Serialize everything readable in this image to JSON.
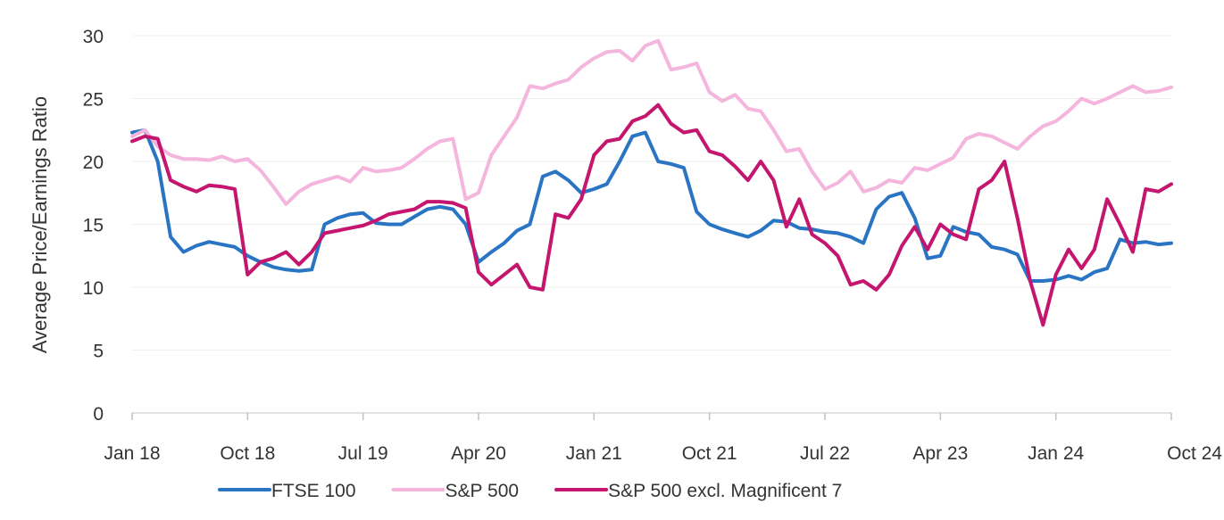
{
  "chart_data": {
    "type": "line",
    "title": "",
    "xlabel": "",
    "ylabel": "Average Price/Earnings Ratio",
    "ylim": [
      0,
      30
    ],
    "yticks": [
      0,
      5,
      10,
      15,
      20,
      25,
      30
    ],
    "xlim": [
      "2018-01",
      "2024-10"
    ],
    "xticks": [
      {
        "date": "2018-01",
        "label": "Jan 18"
      },
      {
        "date": "2018-10",
        "label": "Oct 18"
      },
      {
        "date": "2019-07",
        "label": "Jul 19"
      },
      {
        "date": "2020-04",
        "label": "Apr 20"
      },
      {
        "date": "2021-01",
        "label": "Jan 21"
      },
      {
        "date": "2021-10",
        "label": "Oct 21"
      },
      {
        "date": "2022-07",
        "label": "Jul 22"
      },
      {
        "date": "2023-04",
        "label": "Apr 23"
      },
      {
        "date": "2024-01",
        "label": "Jan 24"
      },
      {
        "date": "2024-10",
        "label": "Oct 24"
      }
    ],
    "grid": true,
    "legend_position": "bottom",
    "series": [
      {
        "name": "FTSE 100",
        "color": "#2a74c4",
        "points": [
          [
            "2018-01",
            22.3
          ],
          [
            "2018-02",
            22.5
          ],
          [
            "2018-03",
            20
          ],
          [
            "2018-04",
            14
          ],
          [
            "2018-05",
            12.8
          ],
          [
            "2018-06",
            13.3
          ],
          [
            "2018-07",
            13.6
          ],
          [
            "2018-08",
            13.4
          ],
          [
            "2018-09",
            13.2
          ],
          [
            "2018-10",
            12.5
          ],
          [
            "2018-11",
            12
          ],
          [
            "2018-12",
            11.6
          ],
          [
            "2019-01",
            11.4
          ],
          [
            "2019-02",
            11.3
          ],
          [
            "2019-03",
            11.4
          ],
          [
            "2019-04",
            15
          ],
          [
            "2019-05",
            15.5
          ],
          [
            "2019-06",
            15.8
          ],
          [
            "2019-07",
            15.9
          ],
          [
            "2019-08",
            15.1
          ],
          [
            "2019-09",
            15
          ],
          [
            "2019-10",
            15
          ],
          [
            "2019-11",
            15.6
          ],
          [
            "2019-12",
            16.2
          ],
          [
            "2020-01",
            16.4
          ],
          [
            "2020-02",
            16.2
          ],
          [
            "2020-03",
            15
          ],
          [
            "2020-04",
            12
          ],
          [
            "2020-05",
            12.8
          ],
          [
            "2020-06",
            13.5
          ],
          [
            "2020-07",
            14.5
          ],
          [
            "2020-08",
            15
          ],
          [
            "2020-09",
            18.8
          ],
          [
            "2020-10",
            19.2
          ],
          [
            "2020-11",
            18.5
          ],
          [
            "2020-12",
            17.5
          ],
          [
            "2021-01",
            17.8
          ],
          [
            "2021-02",
            18.2
          ],
          [
            "2021-03",
            20
          ],
          [
            "2021-04",
            22
          ],
          [
            "2021-05",
            22.3
          ],
          [
            "2021-06",
            20
          ],
          [
            "2021-07",
            19.8
          ],
          [
            "2021-08",
            19.5
          ],
          [
            "2021-09",
            16
          ],
          [
            "2021-10",
            15
          ],
          [
            "2021-11",
            14.6
          ],
          [
            "2021-12",
            14.3
          ],
          [
            "2022-01",
            14
          ],
          [
            "2022-02",
            14.5
          ],
          [
            "2022-03",
            15.3
          ],
          [
            "2022-04",
            15.2
          ],
          [
            "2022-05",
            14.7
          ],
          [
            "2022-06",
            14.6
          ],
          [
            "2022-07",
            14.4
          ],
          [
            "2022-08",
            14.3
          ],
          [
            "2022-09",
            14
          ],
          [
            "2022-10",
            13.5
          ],
          [
            "2022-11",
            16.2
          ],
          [
            "2022-12",
            17.2
          ],
          [
            "2023-01",
            17.5
          ],
          [
            "2023-02",
            15.5
          ],
          [
            "2023-03",
            12.3
          ],
          [
            "2023-04",
            12.5
          ],
          [
            "2023-05",
            14.8
          ],
          [
            "2023-06",
            14.4
          ],
          [
            "2023-07",
            14.2
          ],
          [
            "2023-08",
            13.2
          ],
          [
            "2023-09",
            13
          ],
          [
            "2023-10",
            12.6
          ],
          [
            "2023-11",
            10.5
          ],
          [
            "2023-12",
            10.5
          ],
          [
            "2024-01",
            10.6
          ],
          [
            "2024-02",
            10.9
          ],
          [
            "2024-03",
            10.6
          ],
          [
            "2024-04",
            11.2
          ],
          [
            "2024-05",
            11.5
          ],
          [
            "2024-06",
            13.8
          ],
          [
            "2024-07",
            13.5
          ],
          [
            "2024-08",
            13.6
          ],
          [
            "2024-09",
            13.4
          ],
          [
            "2024-10",
            13.5
          ]
        ]
      },
      {
        "name": "S&P 500",
        "color": "#f4b6dd",
        "points": [
          [
            "2018-01",
            22
          ],
          [
            "2018-02",
            22.5
          ],
          [
            "2018-03",
            21.2
          ],
          [
            "2018-04",
            20.5
          ],
          [
            "2018-05",
            20.2
          ],
          [
            "2018-06",
            20.2
          ],
          [
            "2018-07",
            20.1
          ],
          [
            "2018-08",
            20.4
          ],
          [
            "2018-09",
            20
          ],
          [
            "2018-10",
            20.2
          ],
          [
            "2018-11",
            19.3
          ],
          [
            "2018-12",
            18
          ],
          [
            "2019-01",
            16.6
          ],
          [
            "2019-02",
            17.6
          ],
          [
            "2019-03",
            18.2
          ],
          [
            "2019-04",
            18.5
          ],
          [
            "2019-05",
            18.8
          ],
          [
            "2019-06",
            18.4
          ],
          [
            "2019-07",
            19.5
          ],
          [
            "2019-08",
            19.2
          ],
          [
            "2019-09",
            19.3
          ],
          [
            "2019-10",
            19.5
          ],
          [
            "2019-11",
            20.2
          ],
          [
            "2019-12",
            21
          ],
          [
            "2020-01",
            21.6
          ],
          [
            "2020-02",
            21.8
          ],
          [
            "2020-03",
            17
          ],
          [
            "2020-04",
            17.5
          ],
          [
            "2020-05",
            20.5
          ],
          [
            "2020-06",
            22
          ],
          [
            "2020-07",
            23.5
          ],
          [
            "2020-08",
            26
          ],
          [
            "2020-09",
            25.8
          ],
          [
            "2020-10",
            26.2
          ],
          [
            "2020-11",
            26.5
          ],
          [
            "2020-12",
            27.5
          ],
          [
            "2021-01",
            28.2
          ],
          [
            "2021-02",
            28.7
          ],
          [
            "2021-03",
            28.8
          ],
          [
            "2021-04",
            28
          ],
          [
            "2021-05",
            29.2
          ],
          [
            "2021-06",
            29.6
          ],
          [
            "2021-07",
            27.3
          ],
          [
            "2021-08",
            27.5
          ],
          [
            "2021-09",
            27.8
          ],
          [
            "2021-10",
            25.5
          ],
          [
            "2021-11",
            24.8
          ],
          [
            "2021-12",
            25.3
          ],
          [
            "2022-01",
            24.2
          ],
          [
            "2022-02",
            24
          ],
          [
            "2022-03",
            22.5
          ],
          [
            "2022-04",
            20.8
          ],
          [
            "2022-05",
            21
          ],
          [
            "2022-06",
            19.2
          ],
          [
            "2022-07",
            17.8
          ],
          [
            "2022-08",
            18.3
          ],
          [
            "2022-09",
            19.2
          ],
          [
            "2022-10",
            17.6
          ],
          [
            "2022-11",
            17.9
          ],
          [
            "2022-12",
            18.5
          ],
          [
            "2023-01",
            18.3
          ],
          [
            "2023-02",
            19.5
          ],
          [
            "2023-03",
            19.3
          ],
          [
            "2023-04",
            19.8
          ],
          [
            "2023-05",
            20.3
          ],
          [
            "2023-06",
            21.8
          ],
          [
            "2023-07",
            22.2
          ],
          [
            "2023-08",
            22
          ],
          [
            "2023-09",
            21.5
          ],
          [
            "2023-10",
            21
          ],
          [
            "2023-11",
            22
          ],
          [
            "2023-12",
            22.8
          ],
          [
            "2024-01",
            23.2
          ],
          [
            "2024-02",
            24
          ],
          [
            "2024-03",
            25
          ],
          [
            "2024-04",
            24.6
          ],
          [
            "2024-05",
            25
          ],
          [
            "2024-06",
            25.5
          ],
          [
            "2024-07",
            26
          ],
          [
            "2024-08",
            25.5
          ],
          [
            "2024-09",
            25.6
          ],
          [
            "2024-10",
            25.9
          ]
        ]
      },
      {
        "name": "S&P 500 excl. Magnificent 7",
        "color": "#c4166f",
        "points": [
          [
            "2018-01",
            21.6
          ],
          [
            "2018-02",
            22
          ],
          [
            "2018-03",
            21.8
          ],
          [
            "2018-04",
            18.5
          ],
          [
            "2018-05",
            18
          ],
          [
            "2018-06",
            17.6
          ],
          [
            "2018-07",
            18.1
          ],
          [
            "2018-08",
            18
          ],
          [
            "2018-09",
            17.8
          ],
          [
            "2018-10",
            11
          ],
          [
            "2018-11",
            12
          ],
          [
            "2018-12",
            12.3
          ],
          [
            "2019-01",
            12.8
          ],
          [
            "2019-02",
            11.8
          ],
          [
            "2019-03",
            12.8
          ],
          [
            "2019-04",
            14.3
          ],
          [
            "2019-05",
            14.5
          ],
          [
            "2019-06",
            14.7
          ],
          [
            "2019-07",
            14.9
          ],
          [
            "2019-08",
            15.3
          ],
          [
            "2019-09",
            15.8
          ],
          [
            "2019-10",
            16
          ],
          [
            "2019-11",
            16.2
          ],
          [
            "2019-12",
            16.8
          ],
          [
            "2020-01",
            16.8
          ],
          [
            "2020-02",
            16.7
          ],
          [
            "2020-03",
            16.3
          ],
          [
            "2020-04",
            11.2
          ],
          [
            "2020-05",
            10.2
          ],
          [
            "2020-06",
            11
          ],
          [
            "2020-07",
            11.8
          ],
          [
            "2020-08",
            10
          ],
          [
            "2020-09",
            9.8
          ],
          [
            "2020-10",
            15.8
          ],
          [
            "2020-11",
            15.5
          ],
          [
            "2020-12",
            17
          ],
          [
            "2021-01",
            20.5
          ],
          [
            "2021-02",
            21.6
          ],
          [
            "2021-03",
            21.8
          ],
          [
            "2021-04",
            23.2
          ],
          [
            "2021-05",
            23.6
          ],
          [
            "2021-06",
            24.5
          ],
          [
            "2021-07",
            23
          ],
          [
            "2021-08",
            22.3
          ],
          [
            "2021-09",
            22.5
          ],
          [
            "2021-10",
            20.8
          ],
          [
            "2021-11",
            20.5
          ],
          [
            "2021-12",
            19.6
          ],
          [
            "2022-01",
            18.5
          ],
          [
            "2022-02",
            20
          ],
          [
            "2022-03",
            18.5
          ],
          [
            "2022-04",
            14.8
          ],
          [
            "2022-05",
            17
          ],
          [
            "2022-06",
            14.2
          ],
          [
            "2022-07",
            13.5
          ],
          [
            "2022-08",
            12.5
          ],
          [
            "2022-09",
            10.2
          ],
          [
            "2022-10",
            10.5
          ],
          [
            "2022-11",
            9.8
          ],
          [
            "2022-12",
            11
          ],
          [
            "2023-01",
            13.3
          ],
          [
            "2023-02",
            14.8
          ],
          [
            "2023-03",
            13
          ],
          [
            "2023-04",
            15
          ],
          [
            "2023-05",
            14.2
          ],
          [
            "2023-06",
            13.8
          ],
          [
            "2023-07",
            17.8
          ],
          [
            "2023-08",
            18.5
          ],
          [
            "2023-09",
            20
          ],
          [
            "2023-10",
            15.5
          ],
          [
            "2023-11",
            10.5
          ],
          [
            "2023-12",
            7
          ],
          [
            "2024-01",
            11
          ],
          [
            "2024-02",
            13
          ],
          [
            "2024-03",
            11.5
          ],
          [
            "2024-04",
            13
          ],
          [
            "2024-05",
            17
          ],
          [
            "2024-06",
            15
          ],
          [
            "2024-07",
            12.8
          ],
          [
            "2024-08",
            17.8
          ],
          [
            "2024-09",
            17.6
          ],
          [
            "2024-10",
            18.2
          ]
        ]
      }
    ]
  }
}
